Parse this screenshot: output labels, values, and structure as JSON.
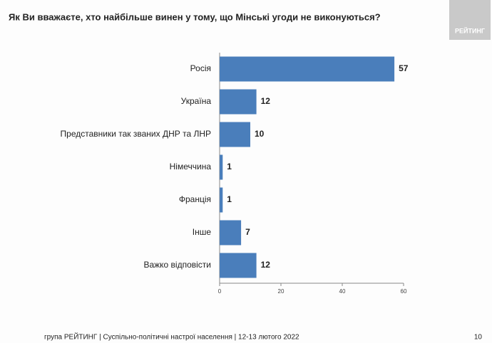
{
  "chart_data": {
    "type": "bar",
    "orientation": "horizontal",
    "title": "Як Ви вважаєте, хто найбільше винен у тому, що Мінські угоди не виконуються?",
    "categories": [
      "Росія",
      "Україна",
      "Представники так званих ДНР та ЛНР",
      "Німеччина",
      "Франція",
      "Інше",
      "Важко відповісти"
    ],
    "values": [
      57,
      12,
      10,
      1,
      1,
      7,
      12
    ],
    "color": "#4a7ebb",
    "xlim": [
      0,
      60
    ],
    "xticks": [
      0,
      20,
      40,
      60
    ],
    "grid": false
  },
  "logo": "РЕЙТИНГ",
  "footer": {
    "source": "група РЕЙТИНГ | Суспільно-політичні настрої населення | 12-13 лютого 2022",
    "page": "10"
  }
}
